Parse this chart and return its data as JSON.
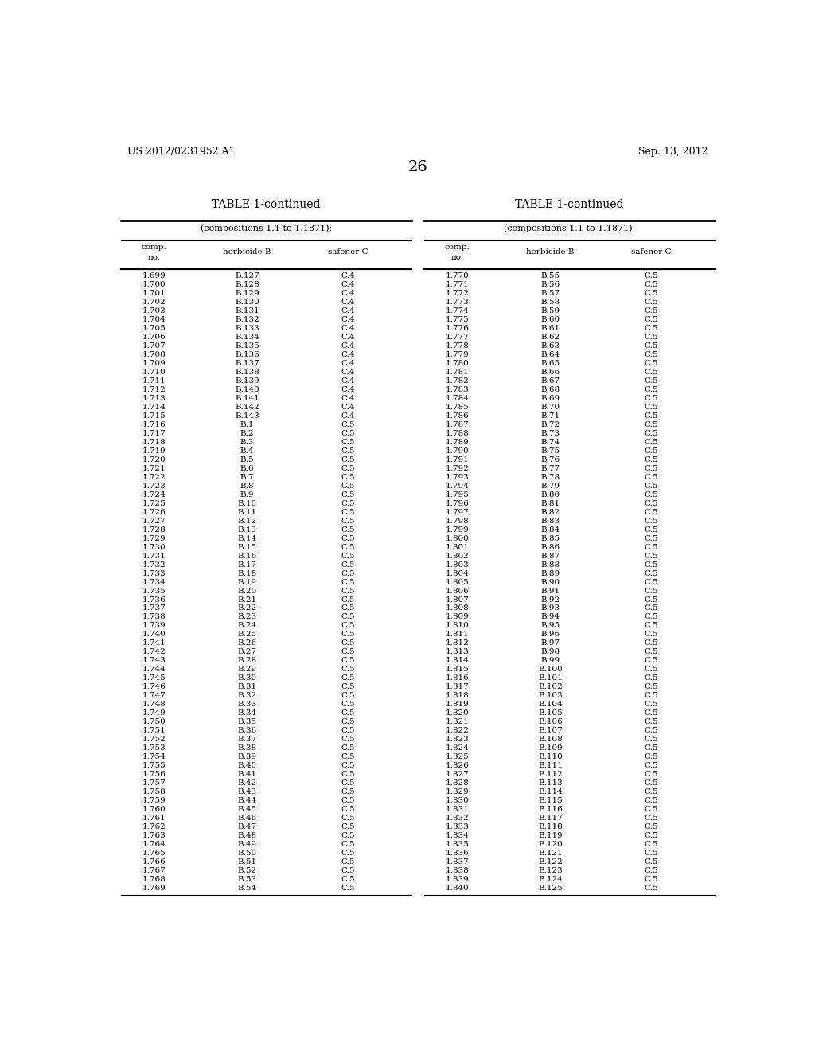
{
  "header_left": "US 2012/0231952 A1",
  "header_right": "Sep. 13, 2012",
  "page_number": "26",
  "table_title": "TABLE 1-continued",
  "table_subtitle": "(compositions 1.1 to 1.1871):",
  "left_table": {
    "comp_no": [
      "1.699",
      "1.700",
      "1.701",
      "1.702",
      "1.703",
      "1.704",
      "1.705",
      "1.706",
      "1.707",
      "1.708",
      "1.709",
      "1.710",
      "1.711",
      "1.712",
      "1.713",
      "1.714",
      "1.715",
      "1.716",
      "1.717",
      "1.718",
      "1.719",
      "1.720",
      "1.721",
      "1.722",
      "1.723",
      "1.724",
      "1.725",
      "1.726",
      "1.727",
      "1.728",
      "1.729",
      "1.730",
      "1.731",
      "1.732",
      "1.733",
      "1.734",
      "1.735",
      "1.736",
      "1.737",
      "1.738",
      "1.739",
      "1.740",
      "1.741",
      "1.742",
      "1.743",
      "1.744",
      "1.745",
      "1.746",
      "1.747",
      "1.748",
      "1.749",
      "1.750",
      "1.751",
      "1.752",
      "1.753",
      "1.754",
      "1.755",
      "1.756",
      "1.757",
      "1.758",
      "1.759",
      "1.760",
      "1.761",
      "1.762",
      "1.763",
      "1.764",
      "1.765",
      "1.766",
      "1.767",
      "1.768",
      "1.769"
    ],
    "herbicide_b": [
      "B.127",
      "B.128",
      "B.129",
      "B.130",
      "B.131",
      "B.132",
      "B.133",
      "B.134",
      "B.135",
      "B.136",
      "B.137",
      "B.138",
      "B.139",
      "B.140",
      "B.141",
      "B.142",
      "B.143",
      "B.1",
      "B.2",
      "B.3",
      "B.4",
      "B.5",
      "B.6",
      "B.7",
      "B.8",
      "B.9",
      "B.10",
      "B.11",
      "B.12",
      "B.13",
      "B.14",
      "B.15",
      "B.16",
      "B.17",
      "B.18",
      "B.19",
      "B.20",
      "B.21",
      "B.22",
      "B.23",
      "B.24",
      "B.25",
      "B.26",
      "B.27",
      "B.28",
      "B.29",
      "B.30",
      "B.31",
      "B.32",
      "B.33",
      "B.34",
      "B.35",
      "B.36",
      "B.37",
      "B.38",
      "B.39",
      "B.40",
      "B.41",
      "B.42",
      "B.43",
      "B.44",
      "B.45",
      "B.46",
      "B.47",
      "B.48",
      "B.49",
      "B.50",
      "B.51",
      "B.52",
      "B.53",
      "B.54"
    ],
    "safener_c": [
      "C.4",
      "C.4",
      "C.4",
      "C.4",
      "C.4",
      "C.4",
      "C.4",
      "C.4",
      "C.4",
      "C.4",
      "C.4",
      "C.4",
      "C.4",
      "C.4",
      "C.4",
      "C.4",
      "C.4",
      "C.5",
      "C.5",
      "C.5",
      "C.5",
      "C.5",
      "C.5",
      "C.5",
      "C.5",
      "C.5",
      "C.5",
      "C.5",
      "C.5",
      "C.5",
      "C.5",
      "C.5",
      "C.5",
      "C.5",
      "C.5",
      "C.5",
      "C.5",
      "C.5",
      "C.5",
      "C.5",
      "C.5",
      "C.5",
      "C.5",
      "C.5",
      "C.5",
      "C.5",
      "C.5",
      "C.5",
      "C.5",
      "C.5",
      "C.5",
      "C.5",
      "C.5",
      "C.5",
      "C.5",
      "C.5",
      "C.5",
      "C.5",
      "C.5",
      "C.5",
      "C.5",
      "C.5",
      "C.5",
      "C.5",
      "C.5",
      "C.5",
      "C.5",
      "C.5",
      "C.5",
      "C.5",
      "C.5"
    ]
  },
  "right_table": {
    "comp_no": [
      "1.770",
      "1.771",
      "1.772",
      "1.773",
      "1.774",
      "1.775",
      "1.776",
      "1.777",
      "1.778",
      "1.779",
      "1.780",
      "1.781",
      "1.782",
      "1.783",
      "1.784",
      "1.785",
      "1.786",
      "1.787",
      "1.788",
      "1.789",
      "1.790",
      "1.791",
      "1.792",
      "1.793",
      "1.794",
      "1.795",
      "1.796",
      "1.797",
      "1.798",
      "1.799",
      "1.800",
      "1.801",
      "1.802",
      "1.803",
      "1.804",
      "1.805",
      "1.806",
      "1.807",
      "1.808",
      "1.809",
      "1.810",
      "1.811",
      "1.812",
      "1.813",
      "1.814",
      "1.815",
      "1.816",
      "1.817",
      "1.818",
      "1.819",
      "1.820",
      "1.821",
      "1.822",
      "1.823",
      "1.824",
      "1.825",
      "1.826",
      "1.827",
      "1.828",
      "1.829",
      "1.830",
      "1.831",
      "1.832",
      "1.833",
      "1.834",
      "1.835",
      "1.836",
      "1.837",
      "1.838",
      "1.839",
      "1.840"
    ],
    "herbicide_b": [
      "B.55",
      "B.56",
      "B.57",
      "B.58",
      "B.59",
      "B.60",
      "B.61",
      "B.62",
      "B.63",
      "B.64",
      "B.65",
      "B.66",
      "B.67",
      "B.68",
      "B.69",
      "B.70",
      "B.71",
      "B.72",
      "B.73",
      "B.74",
      "B.75",
      "B.76",
      "B.77",
      "B.78",
      "B.79",
      "B.80",
      "B.81",
      "B.82",
      "B.83",
      "B.84",
      "B.85",
      "B.86",
      "B.87",
      "B.88",
      "B.89",
      "B.90",
      "B.91",
      "B.92",
      "B.93",
      "B.94",
      "B.95",
      "B.96",
      "B.97",
      "B.98",
      "B.99",
      "B.100",
      "B.101",
      "B.102",
      "B.103",
      "B.104",
      "B.105",
      "B.106",
      "B.107",
      "B.108",
      "B.109",
      "B.110",
      "B.111",
      "B.112",
      "B.113",
      "B.114",
      "B.115",
      "B.116",
      "B.117",
      "B.118",
      "B.119",
      "B.120",
      "B.121",
      "B.122",
      "B.123",
      "B.124",
      "B.125"
    ],
    "safener_c": [
      "C.5",
      "C.5",
      "C.5",
      "C.5",
      "C.5",
      "C.5",
      "C.5",
      "C.5",
      "C.5",
      "C.5",
      "C.5",
      "C.5",
      "C.5",
      "C.5",
      "C.5",
      "C.5",
      "C.5",
      "C.5",
      "C.5",
      "C.5",
      "C.5",
      "C.5",
      "C.5",
      "C.5",
      "C.5",
      "C.5",
      "C.5",
      "C.5",
      "C.5",
      "C.5",
      "C.5",
      "C.5",
      "C.5",
      "C.5",
      "C.5",
      "C.5",
      "C.5",
      "C.5",
      "C.5",
      "C.5",
      "C.5",
      "C.5",
      "C.5",
      "C.5",
      "C.5",
      "C.5",
      "C.5",
      "C.5",
      "C.5",
      "C.5",
      "C.5",
      "C.5",
      "C.5",
      "C.5",
      "C.5",
      "C.5",
      "C.5",
      "C.5",
      "C.5",
      "C.5",
      "C.5",
      "C.5",
      "C.5",
      "C.5",
      "C.5",
      "C.5",
      "C.5",
      "C.5",
      "C.5",
      "C.5",
      "C.5"
    ]
  },
  "bg_color": "#ffffff",
  "font_size_header": 9,
  "font_size_table_title": 10,
  "font_size_data": 7.5,
  "font_size_page": 14
}
